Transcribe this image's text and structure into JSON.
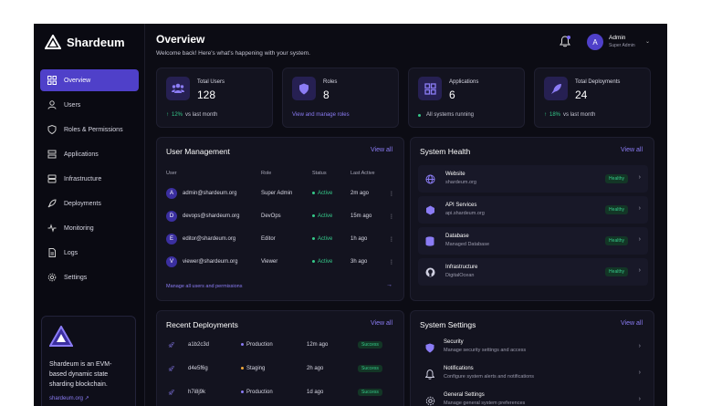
{
  "brand": {
    "name": "Shardeum"
  },
  "sidebar": {
    "items": [
      {
        "label": "Overview",
        "icon": "grid-icon",
        "active": true
      },
      {
        "label": "Users",
        "icon": "user-icon"
      },
      {
        "label": "Roles & Permissions",
        "icon": "shield-icon"
      },
      {
        "label": "Applications",
        "icon": "layers-icon"
      },
      {
        "label": "Infrastructure",
        "icon": "server-icon"
      },
      {
        "label": "Deployments",
        "icon": "rocket-icon"
      },
      {
        "label": "Monitoring",
        "icon": "pulse-icon"
      },
      {
        "label": "Logs",
        "icon": "file-icon"
      },
      {
        "label": "Settings",
        "icon": "gear-icon"
      }
    ],
    "promo": {
      "text": "Shardeum is an EVM-based dynamic state sharding blockchain.",
      "link": "shardeum.org"
    }
  },
  "header": {
    "title": "Overview",
    "subtitle": "Welcome back! Here's what's happening with your system.",
    "user": {
      "initial": "A",
      "name": "Admin",
      "role": "Super Admin"
    }
  },
  "stats": [
    {
      "label": "Total Users",
      "value": "128",
      "foot_highlight": "12%",
      "foot": "vs last month",
      "foot_color": "#35c98a"
    },
    {
      "label": "Roles",
      "value": "8",
      "foot_highlight": "",
      "foot": "View and manage roles",
      "foot_color": "#8b7cf5"
    },
    {
      "label": "Applications",
      "value": "6",
      "foot_highlight": "",
      "foot": "All systems running",
      "foot_color": "#35c98a"
    },
    {
      "label": "Total Deployments",
      "value": "24",
      "foot_highlight": "18%",
      "foot": "vs last month",
      "foot_color": "#35c98a"
    }
  ],
  "user_management": {
    "title": "User Management",
    "view_all": "View all",
    "columns": [
      "User",
      "Role",
      "Status",
      "Last Active"
    ],
    "rows": [
      {
        "initial": "A",
        "email": "admin@shardeum.org",
        "role": "Super Admin",
        "status": "Active",
        "last": "2m ago"
      },
      {
        "initial": "D",
        "email": "devops@shardeum.org",
        "role": "DevOps",
        "status": "Active",
        "last": "15m ago"
      },
      {
        "initial": "E",
        "email": "editor@shardeum.org",
        "role": "Editor",
        "status": "Active",
        "last": "1h ago"
      },
      {
        "initial": "V",
        "email": "viewer@shardeum.org",
        "role": "Viewer",
        "status": "Active",
        "last": "3h ago"
      }
    ],
    "footer_link": "Manage all users and permissions"
  },
  "system_health": {
    "title": "System Health",
    "view_all": "View all",
    "items": [
      {
        "name": "Website",
        "sub": "shardeum.org",
        "status": "Healthy"
      },
      {
        "name": "API Services",
        "sub": "api.shardeum.org",
        "status": "Healthy"
      },
      {
        "name": "Database",
        "sub": "Managed Database",
        "status": "Healthy"
      },
      {
        "name": "Infrastructure",
        "sub": "DigitalOcean",
        "status": "Healthy"
      }
    ]
  },
  "deployments": {
    "title": "Recent Deployments",
    "view_all": "View all",
    "rows": [
      {
        "hash": "a1b2c3d",
        "env": "Production",
        "time": "12m ago",
        "status": "Success",
        "env_color": "#8b7cf5"
      },
      {
        "hash": "d4e5f6g",
        "env": "Staging",
        "time": "2h ago",
        "status": "Success",
        "env_color": "#f0a93b"
      },
      {
        "hash": "h7i8j9k",
        "env": "Production",
        "time": "1d ago",
        "status": "Success",
        "env_color": "#8b7cf5"
      }
    ]
  },
  "system_settings": {
    "title": "System Settings",
    "view_all": "View all",
    "items": [
      {
        "name": "Security",
        "sub": "Manage security settings and access"
      },
      {
        "name": "Notifications",
        "sub": "Configure system alerts and notifications"
      },
      {
        "name": "General Settings",
        "sub": "Manage general system preferences"
      }
    ]
  }
}
